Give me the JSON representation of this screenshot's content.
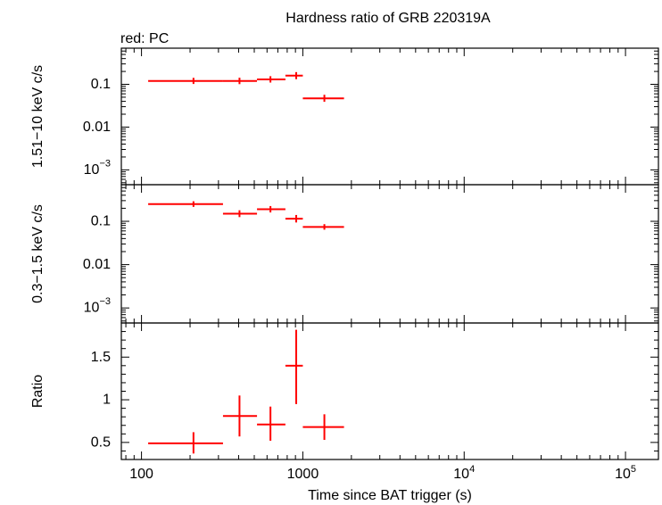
{
  "chart_data": {
    "type": "scatter",
    "title": "Hardness ratio of GRB 220319A",
    "legend_note": "red: PC",
    "xlabel": "Time since BAT trigger (s)",
    "x_scale": "log",
    "xlim": [
      75,
      160000
    ],
    "x_ticks": [
      {
        "value": 100,
        "label": "100"
      },
      {
        "value": 1000,
        "label": "1000"
      },
      {
        "value": 10000,
        "label": "10",
        "sup": "4"
      },
      {
        "value": 100000,
        "label": "10",
        "sup": "5"
      }
    ],
    "series_color": "#ff0000",
    "panels": [
      {
        "id": "hard",
        "ylabel": "1.51−10 keV c/s",
        "y_scale": "log",
        "ylim": [
          0.00045,
          0.7
        ],
        "y_ticks": [
          {
            "value": 0.1,
            "label": "0.1"
          },
          {
            "value": 0.01,
            "label": "0.01"
          },
          {
            "value": 0.001,
            "label": "10",
            "sup": "−3"
          }
        ],
        "points": [
          {
            "x": 210,
            "xlo": 110,
            "xhi": 320,
            "y": 0.12,
            "ylo": 0.102,
            "yhi": 0.142
          },
          {
            "x": 405,
            "xlo": 320,
            "xhi": 520,
            "y": 0.12,
            "ylo": 0.101,
            "yhi": 0.143
          },
          {
            "x": 630,
            "xlo": 520,
            "xhi": 780,
            "y": 0.13,
            "ylo": 0.11,
            "yhi": 0.155
          },
          {
            "x": 910,
            "xlo": 780,
            "xhi": 1000,
            "y": 0.16,
            "ylo": 0.132,
            "yhi": 0.193
          },
          {
            "x": 1360,
            "xlo": 1000,
            "xhi": 1800,
            "y": 0.047,
            "ylo": 0.039,
            "yhi": 0.057
          }
        ]
      },
      {
        "id": "soft",
        "ylabel": "0.3−1.5 keV c/s",
        "y_scale": "log",
        "ylim": [
          0.00045,
          0.7
        ],
        "y_ticks": [
          {
            "value": 0.1,
            "label": "0.1"
          },
          {
            "value": 0.01,
            "label": "0.01"
          },
          {
            "value": 0.001,
            "label": "10",
            "sup": "−3"
          }
        ],
        "points": [
          {
            "x": 210,
            "xlo": 110,
            "xhi": 320,
            "y": 0.25,
            "ylo": 0.215,
            "yhi": 0.29
          },
          {
            "x": 405,
            "xlo": 320,
            "xhi": 520,
            "y": 0.15,
            "ylo": 0.125,
            "yhi": 0.18
          },
          {
            "x": 630,
            "xlo": 520,
            "xhi": 780,
            "y": 0.19,
            "ylo": 0.16,
            "yhi": 0.225
          },
          {
            "x": 910,
            "xlo": 780,
            "xhi": 1000,
            "y": 0.115,
            "ylo": 0.094,
            "yhi": 0.14
          },
          {
            "x": 1360,
            "xlo": 1000,
            "xhi": 1800,
            "y": 0.074,
            "ylo": 0.064,
            "yhi": 0.086
          }
        ]
      },
      {
        "id": "ratio",
        "ylabel": "Ratio",
        "y_scale": "linear",
        "ylim": [
          0.3,
          1.9
        ],
        "y_ticks": [
          {
            "value": 0.5,
            "label": "0.5"
          },
          {
            "value": 1,
            "label": "1"
          },
          {
            "value": 1.5,
            "label": "1.5"
          }
        ],
        "points": [
          {
            "x": 210,
            "xlo": 110,
            "xhi": 320,
            "y": 0.49,
            "ylo": 0.37,
            "yhi": 0.62
          },
          {
            "x": 405,
            "xlo": 320,
            "xhi": 520,
            "y": 0.81,
            "ylo": 0.57,
            "yhi": 1.05
          },
          {
            "x": 630,
            "xlo": 520,
            "xhi": 780,
            "y": 0.71,
            "ylo": 0.52,
            "yhi": 0.92
          },
          {
            "x": 910,
            "xlo": 780,
            "xhi": 1000,
            "y": 1.4,
            "ylo": 0.95,
            "yhi": 1.82
          },
          {
            "x": 1360,
            "xlo": 1000,
            "xhi": 1800,
            "y": 0.68,
            "ylo": 0.53,
            "yhi": 0.83
          }
        ]
      }
    ]
  }
}
